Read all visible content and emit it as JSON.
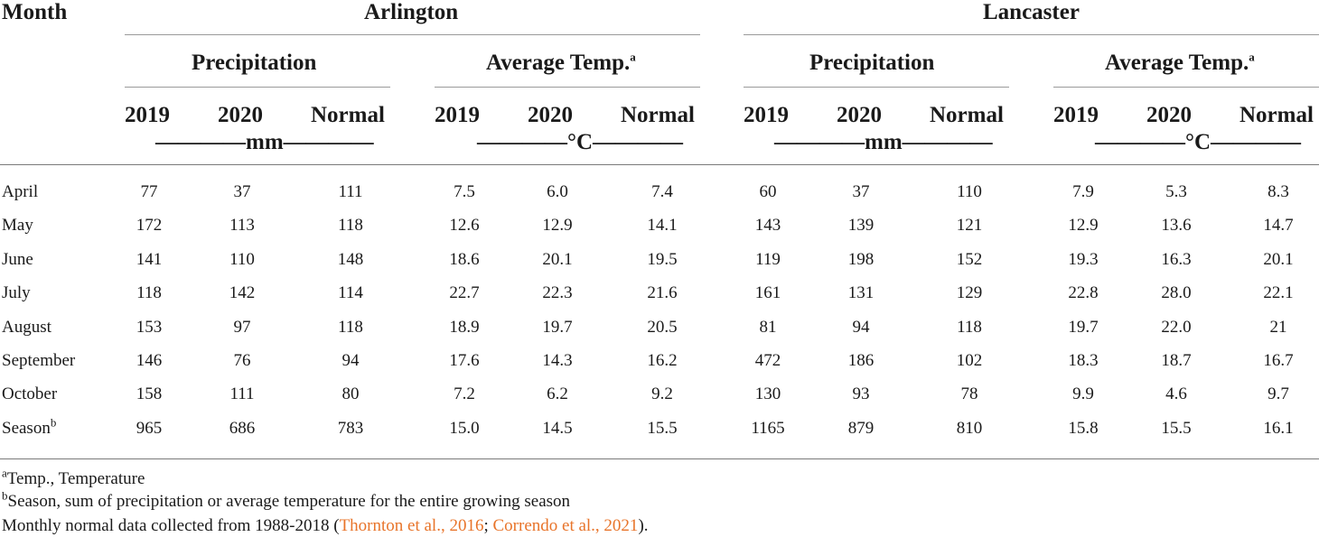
{
  "header": {
    "month": "Month",
    "site1": "Arlington",
    "site2": "Lancaster",
    "precip": "Precipitation",
    "temp": "Average Temp.",
    "temp_sup": "a",
    "y2019": "2019",
    "y2020": "2020",
    "normal": "Normal",
    "unit_mm": "————mm————",
    "unit_c": "————°C————"
  },
  "rows": [
    {
      "month": "April",
      "sup": "",
      "v": [
        "77",
        "37",
        "111",
        "7.5",
        "6.0",
        "7.4",
        "60",
        "37",
        "110",
        "7.9",
        "5.3",
        "8.3"
      ]
    },
    {
      "month": "May",
      "sup": "",
      "v": [
        "172",
        "113",
        "118",
        "12.6",
        "12.9",
        "14.1",
        "143",
        "139",
        "121",
        "12.9",
        "13.6",
        "14.7"
      ]
    },
    {
      "month": "June",
      "sup": "",
      "v": [
        "141",
        "110",
        "148",
        "18.6",
        "20.1",
        "19.5",
        "119",
        "198",
        "152",
        "19.3",
        "16.3",
        "20.1"
      ]
    },
    {
      "month": "July",
      "sup": "",
      "v": [
        "118",
        "142",
        "114",
        "22.7",
        "22.3",
        "21.6",
        "161",
        "131",
        "129",
        "22.8",
        "28.0",
        "22.1"
      ]
    },
    {
      "month": "August",
      "sup": "",
      "v": [
        "153",
        "97",
        "118",
        "18.9",
        "19.7",
        "20.5",
        "81",
        "94",
        "118",
        "19.7",
        "22.0",
        "21"
      ]
    },
    {
      "month": "September",
      "sup": "",
      "v": [
        "146",
        "76",
        "94",
        "17.6",
        "14.3",
        "16.2",
        "472",
        "186",
        "102",
        "18.3",
        "18.7",
        "16.7"
      ]
    },
    {
      "month": "October",
      "sup": "",
      "v": [
        "158",
        "111",
        "80",
        "7.2",
        "6.2",
        "9.2",
        "130",
        "93",
        "78",
        "9.9",
        "4.6",
        "9.7"
      ]
    },
    {
      "month": "Season",
      "sup": "b",
      "v": [
        "965",
        "686",
        "783",
        "15.0",
        "14.5",
        "15.5",
        "1165",
        "879",
        "810",
        "15.8",
        "15.5",
        "16.1"
      ]
    }
  ],
  "footnotes": {
    "a_sup": "a",
    "a_text": "Temp., Temperature",
    "b_sup": "b",
    "b_text": "Season, sum of precipitation or average temperature for the entire growing season",
    "c_text_1": "Monthly normal data collected from 1988-2018 (",
    "c_link1": "Thornton et al., 2016",
    "c_sep": "; ",
    "c_link2": "Correndo et al., 2021",
    "c_end": ")."
  }
}
